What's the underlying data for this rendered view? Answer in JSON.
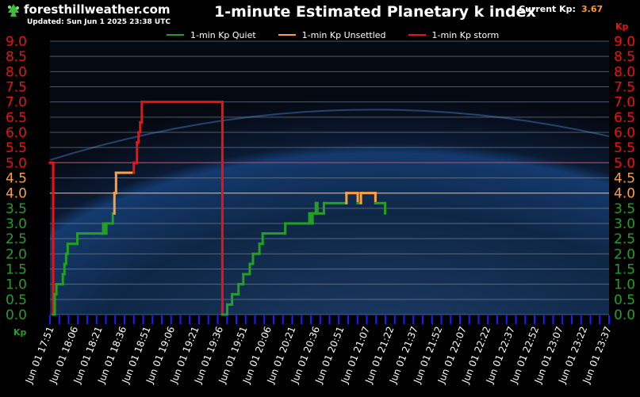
{
  "header": {
    "site": "foresthillweather.com",
    "updated": "Updated: Sun Jun 1 2025 23:38 UTC",
    "current_label": "Current Kp:",
    "current_value": "3.67"
  },
  "chart_data": {
    "type": "line",
    "title": "1-minute Estimated Planetary k index",
    "ylabel": "Kp",
    "ylim": [
      0,
      9
    ],
    "yticks": [
      "0.0",
      "0.5",
      "1.0",
      "1.5",
      "2.0",
      "2.5",
      "3.0",
      "3.5",
      "4.0",
      "4.5",
      "5.0",
      "5.5",
      "6.0",
      "6.5",
      "7.0",
      "7.5",
      "8.0",
      "8.5",
      "9.0"
    ],
    "xlim": [
      "Jun 01 17:51",
      "Jun 01 23:38"
    ],
    "xticks": [
      "Jun 01 17:51",
      "Jun 01 18:06",
      "Jun 01 18:21",
      "Jun 01 18:36",
      "Jun 01 18:51",
      "Jun 01 19:06",
      "Jun 01 19:21",
      "Jun 01 19:36",
      "Jun 01 19:51",
      "Jun 01 20:06",
      "Jun 01 20:21",
      "Jun 01 20:36",
      "Jun 01 20:51",
      "Jun 01 21:07",
      "Jun 01 21:22",
      "Jun 01 21:37",
      "Jun 01 21:52",
      "Jun 01 22:07",
      "Jun 01 22:22",
      "Jun 01 22:37",
      "Jun 01 22:52",
      "Jun 01 23:07",
      "Jun 01 23:22",
      "Jun 01 23:37"
    ],
    "thresholds": [
      {
        "name": "unsettled",
        "value": 4.0,
        "color": "#ffa040"
      },
      {
        "name": "storm",
        "value": 5.0,
        "color": "#ff2020"
      }
    ],
    "grid": true,
    "legend_position": "top",
    "series": [
      {
        "name": "1-min Kp Quiet",
        "color": "#22a022"
      },
      {
        "name": "1-min Kp Unsettled",
        "color": "#ffa040"
      },
      {
        "name": "1-min Kp storm",
        "color": "#ee1111"
      }
    ],
    "points": [
      [
        "17:51",
        5.0
      ],
      [
        "17:53",
        5.0
      ],
      [
        "17:53",
        0.0
      ],
      [
        "17:54",
        0.0
      ],
      [
        "17:54",
        0.67
      ],
      [
        "17:55",
        0.67
      ],
      [
        "17:55",
        1.0
      ],
      [
        "17:59",
        1.0
      ],
      [
        "17:59",
        1.33
      ],
      [
        "18:00",
        1.33
      ],
      [
        "18:00",
        1.67
      ],
      [
        "18:01",
        1.67
      ],
      [
        "18:01",
        2.0
      ],
      [
        "18:02",
        2.0
      ],
      [
        "18:02",
        2.33
      ],
      [
        "18:08",
        2.33
      ],
      [
        "18:08",
        2.67
      ],
      [
        "18:18",
        2.67
      ],
      [
        "18:18",
        2.67
      ],
      [
        "18:23",
        2.67
      ],
      [
        "18:23",
        2.67
      ],
      [
        "18:24",
        2.67
      ],
      [
        "18:24",
        3.0
      ],
      [
        "18:25",
        3.0
      ],
      [
        "18:25",
        2.67
      ],
      [
        "18:26",
        2.67
      ],
      [
        "18:26",
        3.0
      ],
      [
        "18:30",
        3.0
      ],
      [
        "18:30",
        3.33
      ],
      [
        "18:31",
        3.33
      ],
      [
        "18:31",
        4.0
      ],
      [
        "18:32",
        4.0
      ],
      [
        "18:32",
        4.67
      ],
      [
        "18:43",
        4.67
      ],
      [
        "18:43",
        5.0
      ],
      [
        "18:45",
        5.0
      ],
      [
        "18:45",
        5.67
      ],
      [
        "18:46",
        5.67
      ],
      [
        "18:46",
        6.0
      ],
      [
        "18:47",
        6.0
      ],
      [
        "18:47",
        6.33
      ],
      [
        "18:48",
        6.33
      ],
      [
        "18:48",
        7.0
      ],
      [
        "19:38",
        7.0
      ],
      [
        "19:38",
        0.0
      ],
      [
        "19:41",
        0.0
      ],
      [
        "19:41",
        0.33
      ],
      [
        "19:44",
        0.33
      ],
      [
        "19:44",
        0.67
      ],
      [
        "19:48",
        0.67
      ],
      [
        "19:48",
        1.0
      ],
      [
        "19:51",
        1.0
      ],
      [
        "19:51",
        1.33
      ],
      [
        "19:55",
        1.33
      ],
      [
        "19:55",
        1.67
      ],
      [
        "19:57",
        1.67
      ],
      [
        "19:57",
        2.0
      ],
      [
        "20:01",
        2.0
      ],
      [
        "20:01",
        2.33
      ],
      [
        "20:03",
        2.33
      ],
      [
        "20:03",
        2.67
      ],
      [
        "20:17",
        2.67
      ],
      [
        "20:17",
        3.0
      ],
      [
        "20:32",
        3.0
      ],
      [
        "20:32",
        3.33
      ],
      [
        "20:33",
        3.33
      ],
      [
        "20:33",
        3.0
      ],
      [
        "20:34",
        3.0
      ],
      [
        "20:34",
        3.33
      ],
      [
        "20:36",
        3.33
      ],
      [
        "20:36",
        3.67
      ],
      [
        "20:37",
        3.67
      ],
      [
        "20:37",
        3.33
      ],
      [
        "20:41",
        3.33
      ],
      [
        "20:41",
        3.67
      ],
      [
        "20:55",
        3.67
      ],
      [
        "20:55",
        4.0
      ],
      [
        "21:02",
        4.0
      ],
      [
        "21:02",
        3.67
      ],
      [
        "21:04",
        3.67
      ],
      [
        "21:04",
        4.0
      ],
      [
        "21:13",
        4.0
      ],
      [
        "21:13",
        3.67
      ],
      [
        "21:19",
        3.67
      ],
      [
        "21:19",
        3.33
      ]
    ]
  }
}
